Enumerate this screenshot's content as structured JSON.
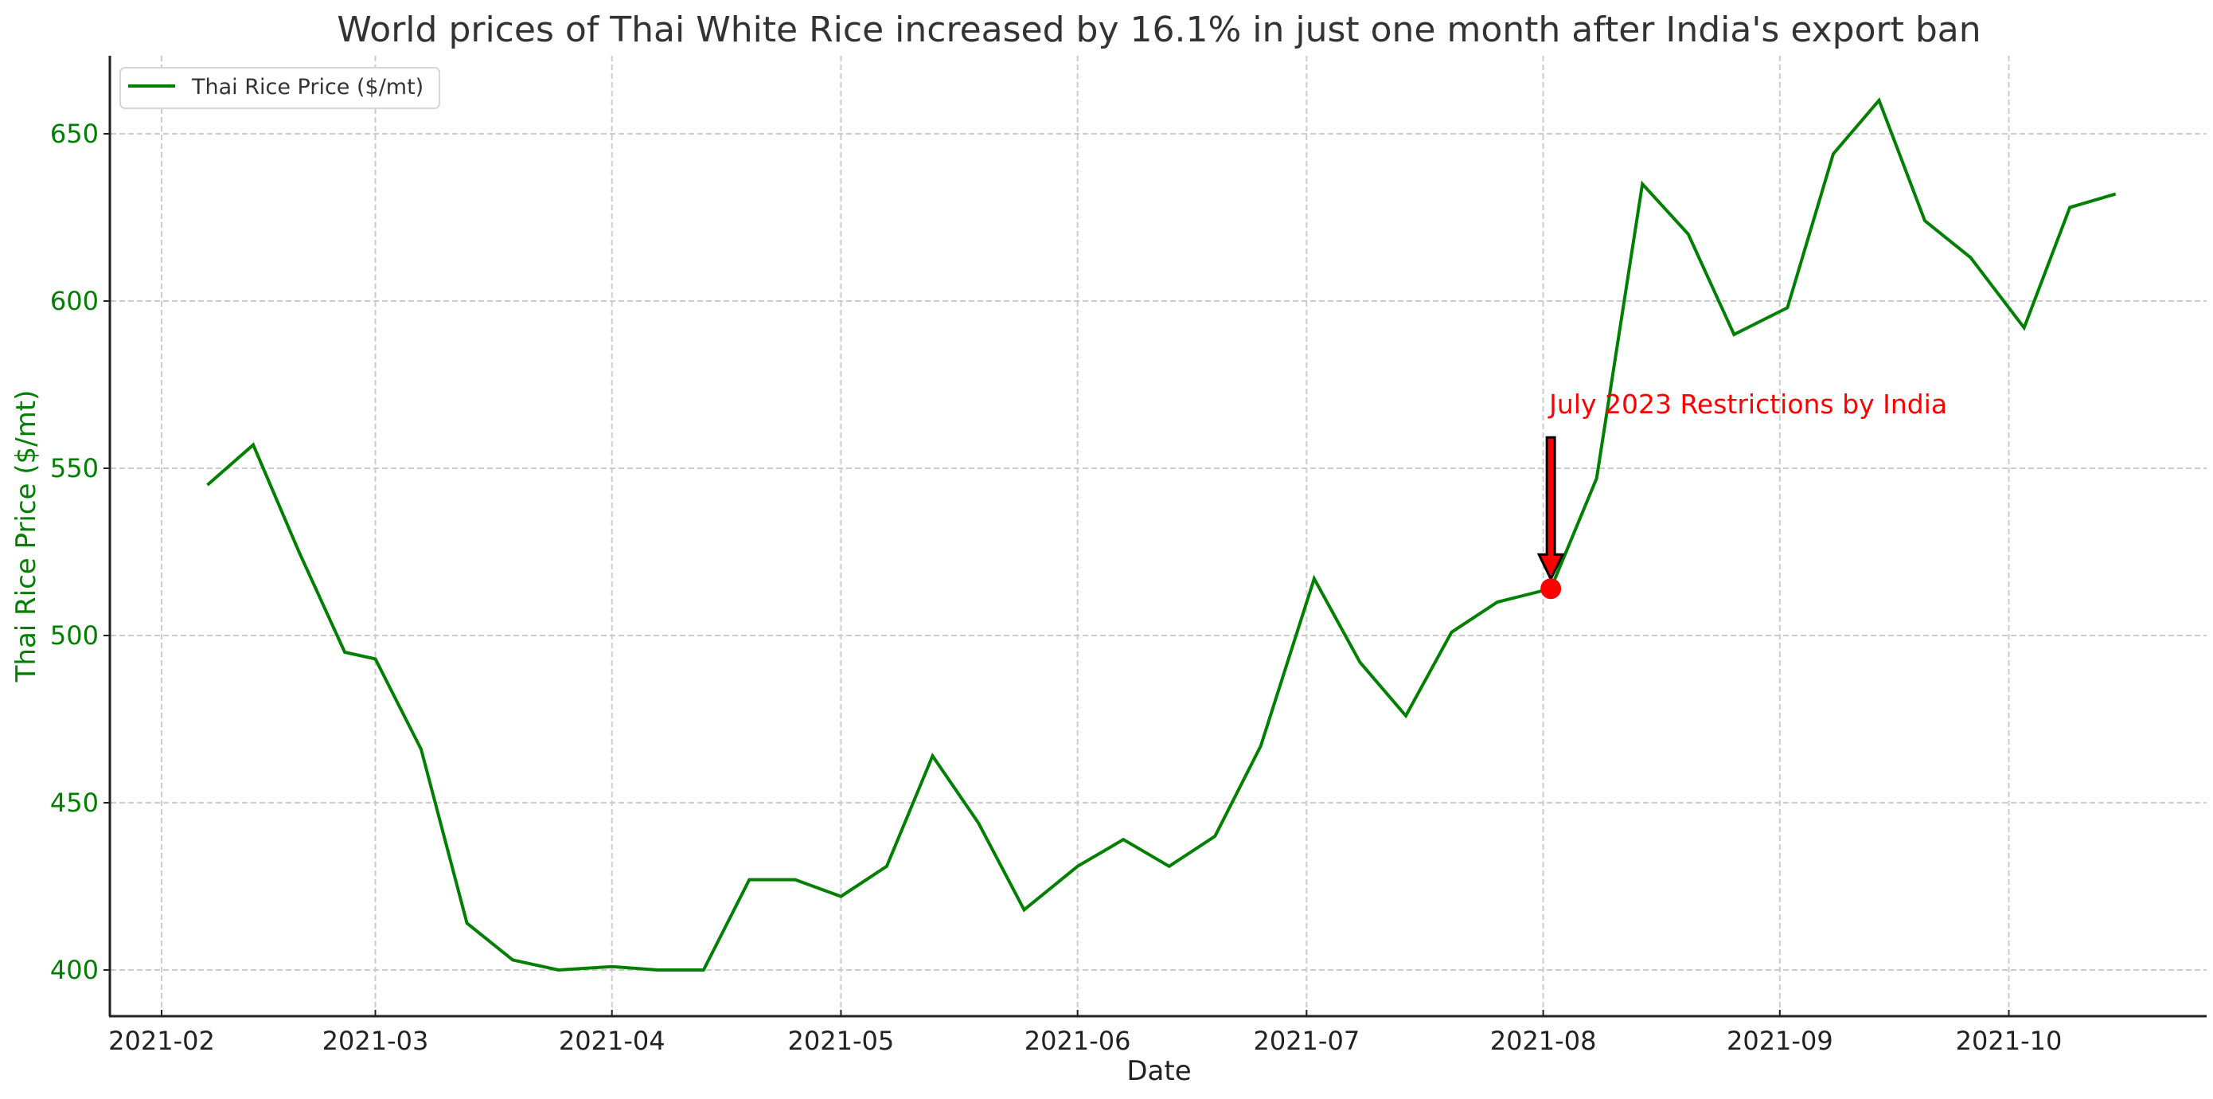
{
  "chart_data": {
    "type": "line",
    "title": "World prices of Thai White Rice increased by 16.1% in just one month after India's export ban",
    "xlabel": "Date",
    "ylabel": "Thai Rice Price ($/mt)",
    "ylim": [
      388,
      672
    ],
    "yticks": [
      400,
      450,
      500,
      550,
      600,
      650
    ],
    "xticks": [
      "2021-02",
      "2021-03",
      "2021-04",
      "2021-05",
      "2021-06",
      "2021-07",
      "2021-08",
      "2021-09",
      "2021-10"
    ],
    "grid": true,
    "legend_position": "upper left",
    "series": [
      {
        "name": "Thai Rice Price ($/mt)",
        "color": "#008000",
        "x": [
          "2021-02-07",
          "2021-02-13",
          "2021-02-19",
          "2021-02-25",
          "2021-03-01",
          "2021-03-07",
          "2021-03-13",
          "2021-03-19",
          "2021-03-25",
          "2021-04-01",
          "2021-04-07",
          "2021-04-13",
          "2021-04-19",
          "2021-04-25",
          "2021-05-01",
          "2021-05-07",
          "2021-05-13",
          "2021-05-19",
          "2021-05-25",
          "2021-06-01",
          "2021-06-07",
          "2021-06-13",
          "2021-06-19",
          "2021-06-25",
          "2021-07-02",
          "2021-07-08",
          "2021-07-14",
          "2021-07-20",
          "2021-07-26",
          "2021-08-02",
          "2021-08-08",
          "2021-08-14",
          "2021-08-20",
          "2021-08-26",
          "2021-09-02",
          "2021-09-08",
          "2021-09-14",
          "2021-09-20",
          "2021-09-26",
          "2021-10-03",
          "2021-10-09",
          "2021-10-15"
        ],
        "values": [
          545,
          557,
          525,
          495,
          493,
          466,
          414,
          403,
          400,
          401,
          400,
          400,
          427,
          427,
          422,
          431,
          464,
          444,
          418,
          431,
          439,
          431,
          440,
          467,
          517,
          492,
          476,
          501,
          510,
          514,
          547,
          635,
          620,
          590,
          598,
          644,
          660,
          624,
          613,
          592,
          628,
          632
        ]
      }
    ],
    "annotations": [
      {
        "text": "July 2023 Restrictions by India",
        "color": "#ff0000",
        "point_index": 29,
        "point_value": 514,
        "arrow": "down"
      }
    ]
  }
}
